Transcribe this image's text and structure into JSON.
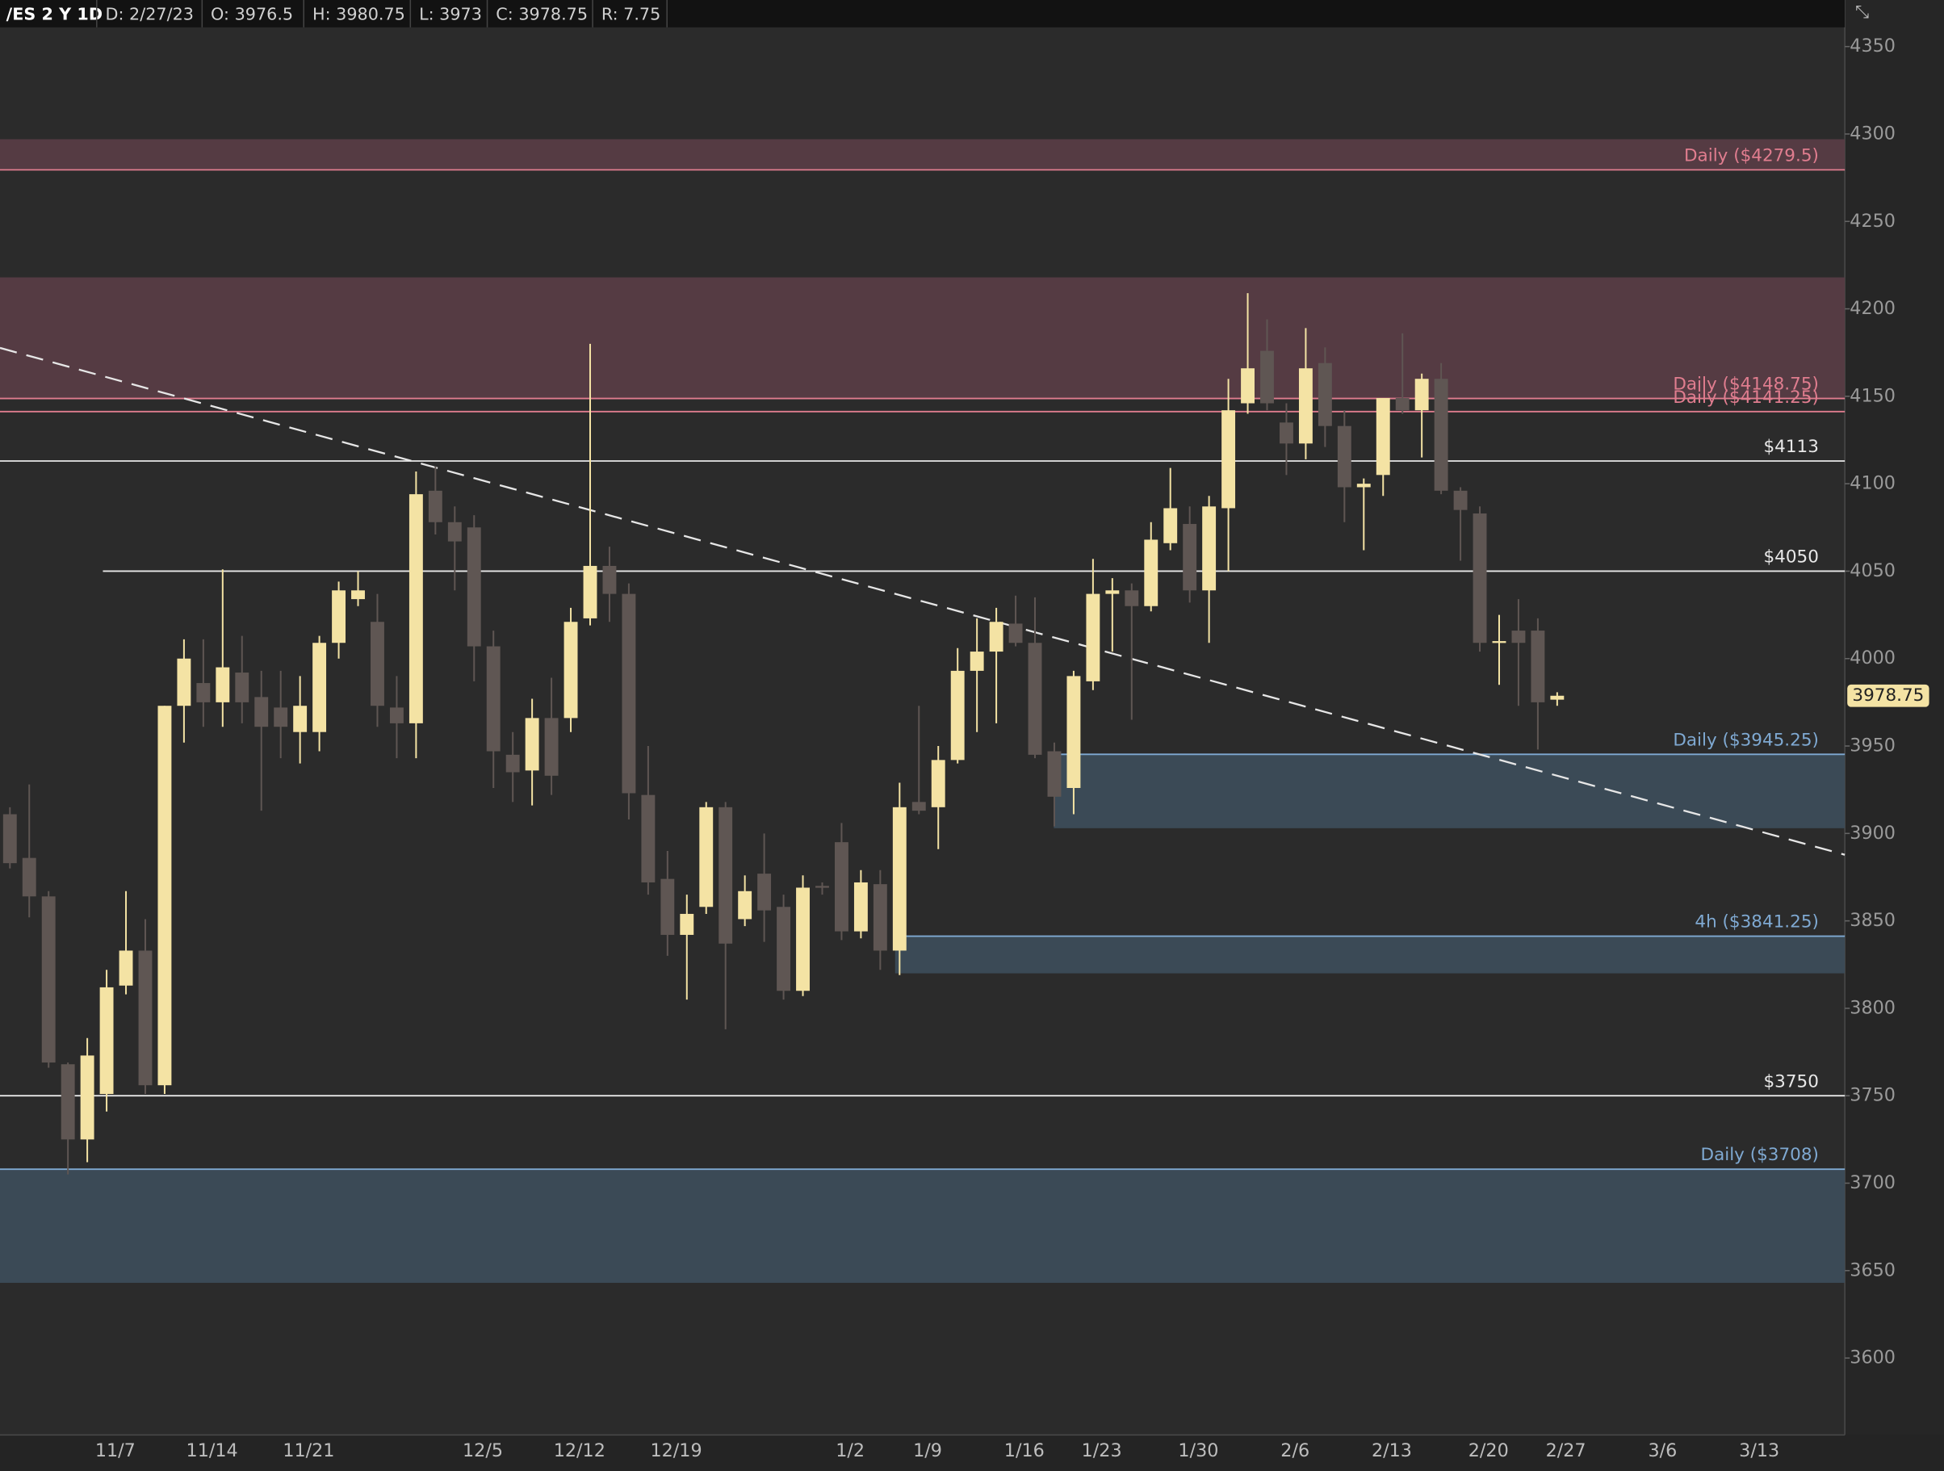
{
  "chart_data": {
    "type": "candlestick",
    "header": [
      "/ES 2 Y 1D",
      "D: 2/27/23",
      "O: 3976.5",
      "H: 3980.75",
      "L: 3973",
      "C: 3978.75",
      "R: 7.75"
    ],
    "categories": [
      null,
      null,
      null,
      null,
      null,
      "11/7",
      null,
      null,
      null,
      null,
      "11/14",
      null,
      null,
      null,
      null,
      "11/21",
      null,
      null,
      null,
      null,
      null,
      null,
      null,
      null,
      "12/5",
      null,
      null,
      null,
      null,
      "12/12",
      null,
      null,
      null,
      null,
      "12/19",
      null,
      null,
      null,
      null,
      null,
      null,
      null,
      null,
      "1/2",
      null,
      null,
      null,
      "1/9",
      null,
      null,
      null,
      null,
      "1/16",
      null,
      null,
      null,
      "1/23",
      null,
      null,
      null,
      null,
      "1/30",
      null,
      null,
      null,
      null,
      "2/6",
      null,
      null,
      null,
      null,
      "2/13",
      null,
      null,
      null,
      null,
      "2/20",
      null,
      null,
      null,
      "2/27",
      null,
      null,
      null,
      null,
      "3/6",
      null,
      null,
      null,
      null,
      "3/13",
      null
    ],
    "open": [
      3911,
      3886,
      3864,
      3768,
      3725,
      3751,
      3813,
      3833,
      3756,
      3973,
      3986,
      3975,
      3992,
      3978,
      3972,
      3958,
      3958,
      4009,
      4034,
      4021,
      3972,
      3963,
      4096,
      4078,
      4075,
      4007,
      3945,
      3936,
      3966,
      3966,
      4023,
      4053,
      4037,
      3922,
      3874,
      3842,
      3858,
      3915,
      3851,
      3877,
      3858,
      3810,
      3870,
      3895,
      3844,
      3871,
      3833,
      3918,
      3915,
      3942,
      3993,
      4004,
      4020,
      4009,
      3947,
      3926,
      3987,
      4037,
      4039,
      4030,
      4066,
      4077,
      4039,
      4086,
      4146,
      4176,
      4135,
      4123,
      4169,
      4133,
      4098,
      4105,
      4149,
      4142,
      4160,
      4096,
      4083,
      4009,
      4016,
      4016,
      3976.5,
      null,
      null,
      null,
      null,
      null,
      null,
      null,
      null,
      null,
      null,
      null
    ],
    "high": [
      3915,
      3928,
      3867,
      3769,
      3783,
      3822,
      3867,
      3851,
      3973,
      4011,
      4011,
      4051,
      4013,
      3993,
      3993,
      3990,
      4013,
      4044,
      4050,
      4037,
      3990,
      4107,
      4110,
      4087,
      4082,
      4016,
      3958,
      3977,
      3989,
      4029,
      4180,
      4064,
      4043,
      3950,
      3890,
      3865,
      3918,
      3918,
      3876,
      3900,
      3865,
      3876,
      3872,
      3906,
      3879,
      3879,
      3929,
      3973,
      3950,
      4006,
      4023,
      4029,
      4036,
      4035,
      3952,
      3993,
      4057,
      4046,
      4043,
      4078,
      4109,
      4087,
      4093,
      4160,
      4209,
      4194,
      4146,
      4189,
      4178,
      4142,
      4103,
      4149,
      4186,
      4163,
      4169,
      4098,
      4087,
      4025,
      4034,
      4023,
      3980.75,
      null,
      null,
      null,
      null,
      null,
      null,
      null,
      null,
      null,
      null,
      null
    ],
    "low": [
      3880,
      3852,
      3766,
      3705,
      3712,
      3741,
      3808,
      3751,
      3751,
      3952,
      3961,
      3961,
      3963,
      3913,
      3943,
      3940,
      3947,
      4000,
      4030,
      3961,
      3943,
      3943,
      4071,
      4039,
      3987,
      3926,
      3918,
      3916,
      3922,
      3958,
      4019,
      4021,
      3908,
      3865,
      3830,
      3805,
      3854,
      3788,
      3847,
      3838,
      3805,
      3807,
      3865,
      3839,
      3840,
      3822,
      3819,
      3911,
      3891,
      3940,
      3958,
      3963,
      4007,
      3943,
      3904,
      3911,
      3982,
      4004,
      3965,
      4027,
      4062,
      4032,
      4009,
      4050,
      4140,
      4142,
      4105,
      4114,
      4121,
      4078,
      4062,
      4093,
      4140,
      4115,
      4094,
      4056,
      4004,
      3985,
      3973,
      3948,
      3973,
      null,
      null,
      null,
      null,
      null,
      null,
      null,
      null,
      null,
      null,
      null
    ],
    "close": [
      3883,
      3864,
      3769,
      3725,
      3773,
      3812,
      3833,
      3756,
      3973,
      4000,
      3975,
      3995,
      3975,
      3961,
      3961,
      3973,
      4009,
      4039,
      4039,
      3973,
      3963,
      4094,
      4078,
      4067,
      4007,
      3947,
      3935,
      3966,
      3933,
      4021,
      4053,
      4037,
      3923,
      3872,
      3842,
      3854,
      3915,
      3837,
      3867,
      3856,
      3810,
      3869,
      3869,
      3844,
      3872,
      3833,
      3915,
      3913,
      3942,
      3993,
      4004,
      4021,
      4009,
      3945,
      3921,
      3990,
      4037,
      4039,
      4030,
      4068,
      4086,
      4039,
      4087,
      4142,
      4166,
      4146,
      4123,
      4166,
      4133,
      4098,
      4100,
      4149,
      4142,
      4160,
      4096,
      4085,
      4009,
      4010,
      4009,
      3975,
      3978.75,
      null,
      null,
      null,
      null,
      null,
      null,
      null,
      null,
      null,
      null,
      null
    ],
    "up_color": "#f4e3a4",
    "down_color": "#5f5653",
    "ylim": [
      3556,
      4361
    ],
    "yticks": [
      3600,
      3650,
      3700,
      3750,
      3800,
      3850,
      3900,
      3950,
      4000,
      4050,
      4100,
      4150,
      4200,
      4250,
      4300,
      4350
    ],
    "levels": [
      {
        "label": "Daily ($4279.5)",
        "value": 4279.5,
        "zone": [
          4279.5,
          4297
        ],
        "color": "#e07d8f",
        "fill": "#553b43"
      },
      {
        "label": "Daily ($4148.75)",
        "value": 4148.75,
        "zone": [
          4148.75,
          4218
        ],
        "color": "#e07d8f",
        "fill": "#553b43"
      },
      {
        "label": "Daily ($4141.25)",
        "value": 4141.25,
        "color": "#e07d8f"
      },
      {
        "label": "$4113",
        "value": 4113,
        "color": "#e8e8e8"
      },
      {
        "label": "$4050",
        "value": 4050,
        "color": "#e8e8e8"
      },
      {
        "label": "Daily ($3945.25)",
        "value": 3945.25,
        "zone": [
          3903,
          3945.25
        ],
        "color": "#7fa9d2",
        "fill": "#3b4a56"
      },
      {
        "label": "4h ($3841.25)",
        "value": 3841.25,
        "zone": [
          3820,
          3841.25
        ],
        "color": "#7fa9d2",
        "fill": "#3b4a56"
      },
      {
        "label": "$3750",
        "value": 3750,
        "color": "#e8e8e8"
      },
      {
        "label": "Daily ($3708)",
        "value": 3708,
        "zone": [
          3643,
          3708
        ],
        "color": "#7fa9d2",
        "fill": "#3b4a56"
      }
    ],
    "last_price": 3978.75
  }
}
